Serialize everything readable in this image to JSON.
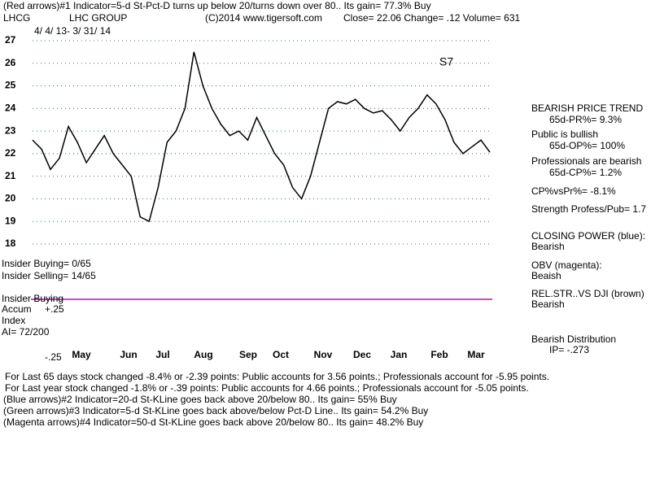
{
  "chart_data": {
    "type": "line",
    "title": "LHC GROUP",
    "ticker": "LHCG",
    "date_range": "4/ 4/ 13- 3/ 31/ 14",
    "header": "(Red arrows)#1 Indicator=5-d St-Pct-D turns up below 20/turns down over 80.. Its gain= 77.3% Buy",
    "copyright": "(C)2014 www.tigersoft.com",
    "quote": "Close=  22.06  Change= .12 Volume= 631",
    "annotation": "S7",
    "ylim": [
      18,
      27
    ],
    "yticks": [
      18,
      19,
      20,
      21,
      22,
      23,
      24,
      25,
      26,
      27
    ],
    "grid": true,
    "months": [
      "May",
      "Jun",
      "Jul",
      "Aug",
      "Sep",
      "Oct",
      "Nov",
      "Dec",
      "Jan",
      "Feb",
      "Mar"
    ],
    "series": [
      {
        "color": "#000000",
        "values": [
          22.6,
          22.2,
          21.3,
          21.8,
          23.2,
          22.5,
          21.6,
          22.2,
          22.8,
          22.0,
          21.5,
          21.0,
          19.2,
          19.0,
          20.5,
          22.5,
          23.0,
          24.0,
          26.5,
          25.0,
          24.0,
          23.3,
          22.8,
          23.0,
          22.6,
          23.6,
          22.8,
          22.0,
          21.5,
          20.5,
          20.0,
          21.0,
          22.5,
          24.0,
          24.3,
          24.2,
          24.4,
          24.0,
          23.8,
          23.9,
          23.5,
          23.0,
          23.6,
          24.0,
          24.6,
          24.2,
          23.5,
          22.5,
          22.0,
          22.3,
          22.6,
          22.06
        ]
      }
    ],
    "left_labels": [
      "Insider Buying= 0/65",
      "Insider Selling= 14/65",
      "Insider Buying",
      "Accum",
      "Index",
      "AI= 72/200",
      "+.25",
      "-.25"
    ],
    "right_panel": [
      "BEARISH PRICE TREND",
      "65d-PR%= 9.3%",
      "Public is bullish",
      "65d-OP%= 100%",
      "Professionals are bearish",
      "65d-CP%= 1.2%",
      "CP%vsPr%= -8.1%",
      "Strength Profess/Pub= 1.7",
      "CLOSING POWER (blue):",
      "Bearish",
      "OBV (magenta):",
      "Beaish",
      "REL.STR..VS DJI (brown)",
      "Bearish",
      "Bearish Distribution",
      "IP= -.273"
    ],
    "footer": [
      "For Last 65 days stock changed -8.4% or -2.39 points:  Public accounts for  3.56 points.;  Professionals account for -5.95 points.",
      "For Last year stock changed -1.8% or -.39 points:  Public accounts for  4.66 points.;  Professionals account for -5.05 points.",
      "(Blue arrows)#2 Indicator=20-d St-KLine goes back above 20/below 80.. Its gain= 55% Buy",
      "(Green arrows)#3 Indicator=5-d St-KLine goes back above/below Pct-D Line.. Its gain= 54.2% Buy",
      "(Magenta arrows)#4 Indicator=50-d St-KLine goes back above 20/below 80.. Its gain= 48.2% Buy"
    ]
  }
}
